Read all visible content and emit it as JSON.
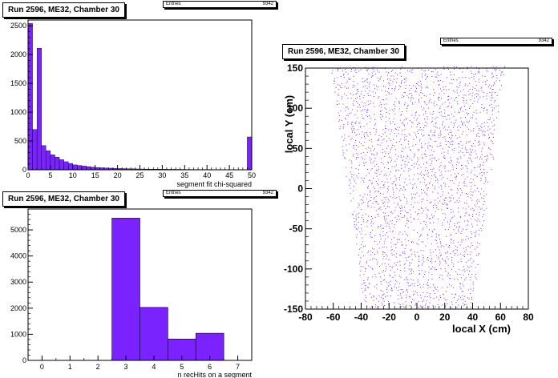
{
  "chart_data": [
    {
      "type": "bar",
      "title": "Run 2596, ME32, Chamber 30",
      "stats_label": "Entries",
      "stats_value": "9342",
      "xlabel": "segment fit chi-squared",
      "ylabel": "",
      "xlim": [
        0,
        50
      ],
      "ylim": [
        0,
        2600
      ],
      "xticks": [
        0,
        5,
        10,
        15,
        20,
        25,
        30,
        35,
        40,
        45,
        50
      ],
      "yticks": [
        0,
        500,
        1000,
        1500,
        2000,
        2500
      ],
      "bin_width": 1,
      "values": [
        2540,
        700,
        2110,
        420,
        330,
        260,
        220,
        175,
        140,
        110,
        85,
        75,
        65,
        55,
        45,
        40,
        35,
        30,
        28,
        25,
        22,
        20,
        18,
        16,
        14,
        13,
        12,
        11,
        10,
        10,
        9,
        8,
        8,
        7,
        7,
        6,
        6,
        5,
        5,
        5,
        5,
        4,
        4,
        4,
        4,
        3,
        3,
        3,
        3,
        570
      ],
      "bar_color": "#7a22ff"
    },
    {
      "type": "bar",
      "title": "Run 2596, ME32, Chamber 30",
      "stats_label": "Entries",
      "stats_value": "9342",
      "xlabel": "n recHits on a segment",
      "ylabel": "",
      "xlim": [
        -0.5,
        7.5
      ],
      "ylim": [
        0,
        5800
      ],
      "xticks": [
        0,
        1,
        2,
        3,
        4,
        5,
        6,
        7
      ],
      "yticks": [
        0,
        1000,
        2000,
        3000,
        4000,
        5000
      ],
      "categories": [
        "3",
        "4",
        "5",
        "6"
      ],
      "values": [
        5450,
        2030,
        820,
        1040
      ],
      "bar_color": "#7a22ff"
    },
    {
      "type": "scatter",
      "title": "Run 2596, ME32, Chamber 30",
      "stats_label": "Entries",
      "stats_value": "9342",
      "xlabel": "local X (cm)",
      "ylabel": "local Y (cm)",
      "xlim": [
        -80,
        80
      ],
      "ylim": [
        -150,
        150
      ],
      "xticks": [
        -80,
        -60,
        -40,
        -20,
        0,
        20,
        40,
        60,
        80
      ],
      "yticks": [
        -150,
        -100,
        -50,
        0,
        50,
        100,
        150
      ],
      "trapezoid": {
        "y_bottom": -150,
        "x_half_bottom": 38,
        "y_top": 150,
        "x_half_top": 62
      },
      "point_color": "#7a22ff"
    }
  ]
}
